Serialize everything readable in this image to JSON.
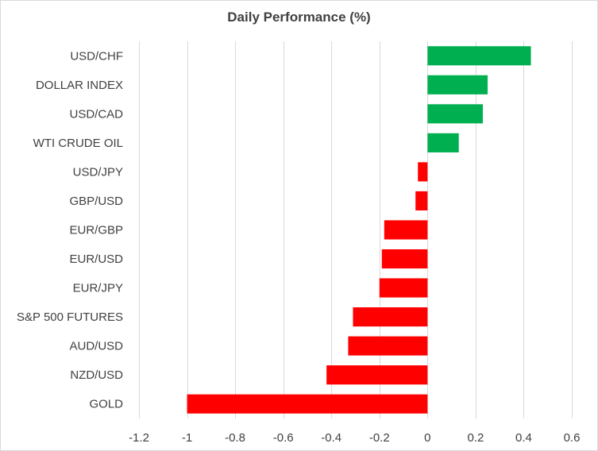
{
  "chart_data": {
    "type": "bar",
    "orientation": "horizontal",
    "title": "Daily Performance  (%)",
    "xlabel": "",
    "ylabel": "",
    "xlim": [
      -1.2,
      0.6
    ],
    "xticks": [
      -1.2,
      -1,
      -0.8,
      -0.6,
      -0.4,
      -0.2,
      0,
      0.2,
      0.4,
      0.6
    ],
    "xtick_labels": [
      "-1.2",
      "-1",
      "-0.8",
      "-0.6",
      "-0.4",
      "-0.2",
      "0",
      "0.2",
      "0.4",
      "0.6"
    ],
    "grid": "vertical",
    "legend": "none",
    "categories": [
      "USD/CHF",
      "DOLLAR INDEX",
      "USD/CAD",
      "WTI CRUDE OIL",
      "USD/JPY",
      "GBP/USD",
      "EUR/GBP",
      "EUR/USD",
      "EUR/JPY",
      "S&P 500 FUTURES",
      "AUD/USD",
      "NZD/USD",
      "GOLD"
    ],
    "values": [
      0.43,
      0.25,
      0.23,
      0.13,
      -0.04,
      -0.05,
      -0.18,
      -0.19,
      -0.2,
      -0.31,
      -0.33,
      -0.42,
      -1.0
    ],
    "colors": {
      "positive": "#00b050",
      "negative": "#ff0000",
      "grid": "#d9d9d9",
      "text": "#404040"
    }
  }
}
